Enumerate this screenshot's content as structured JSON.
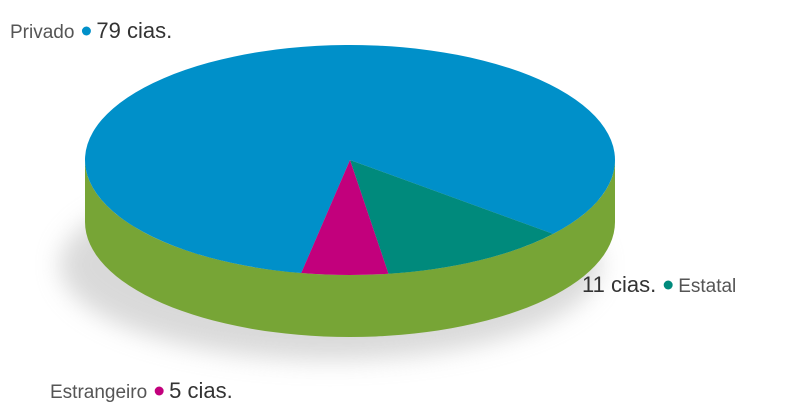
{
  "chart_data": {
    "type": "pie",
    "categories": [
      "Privado",
      "Estatal",
      "Estrangeiro"
    ],
    "values": [
      79,
      11,
      5
    ],
    "value_labels": [
      "79 cias.",
      "11 cias.",
      "5 cias."
    ],
    "colors": [
      "#0090c9",
      "#008a7c",
      "#c2007c"
    ]
  }
}
